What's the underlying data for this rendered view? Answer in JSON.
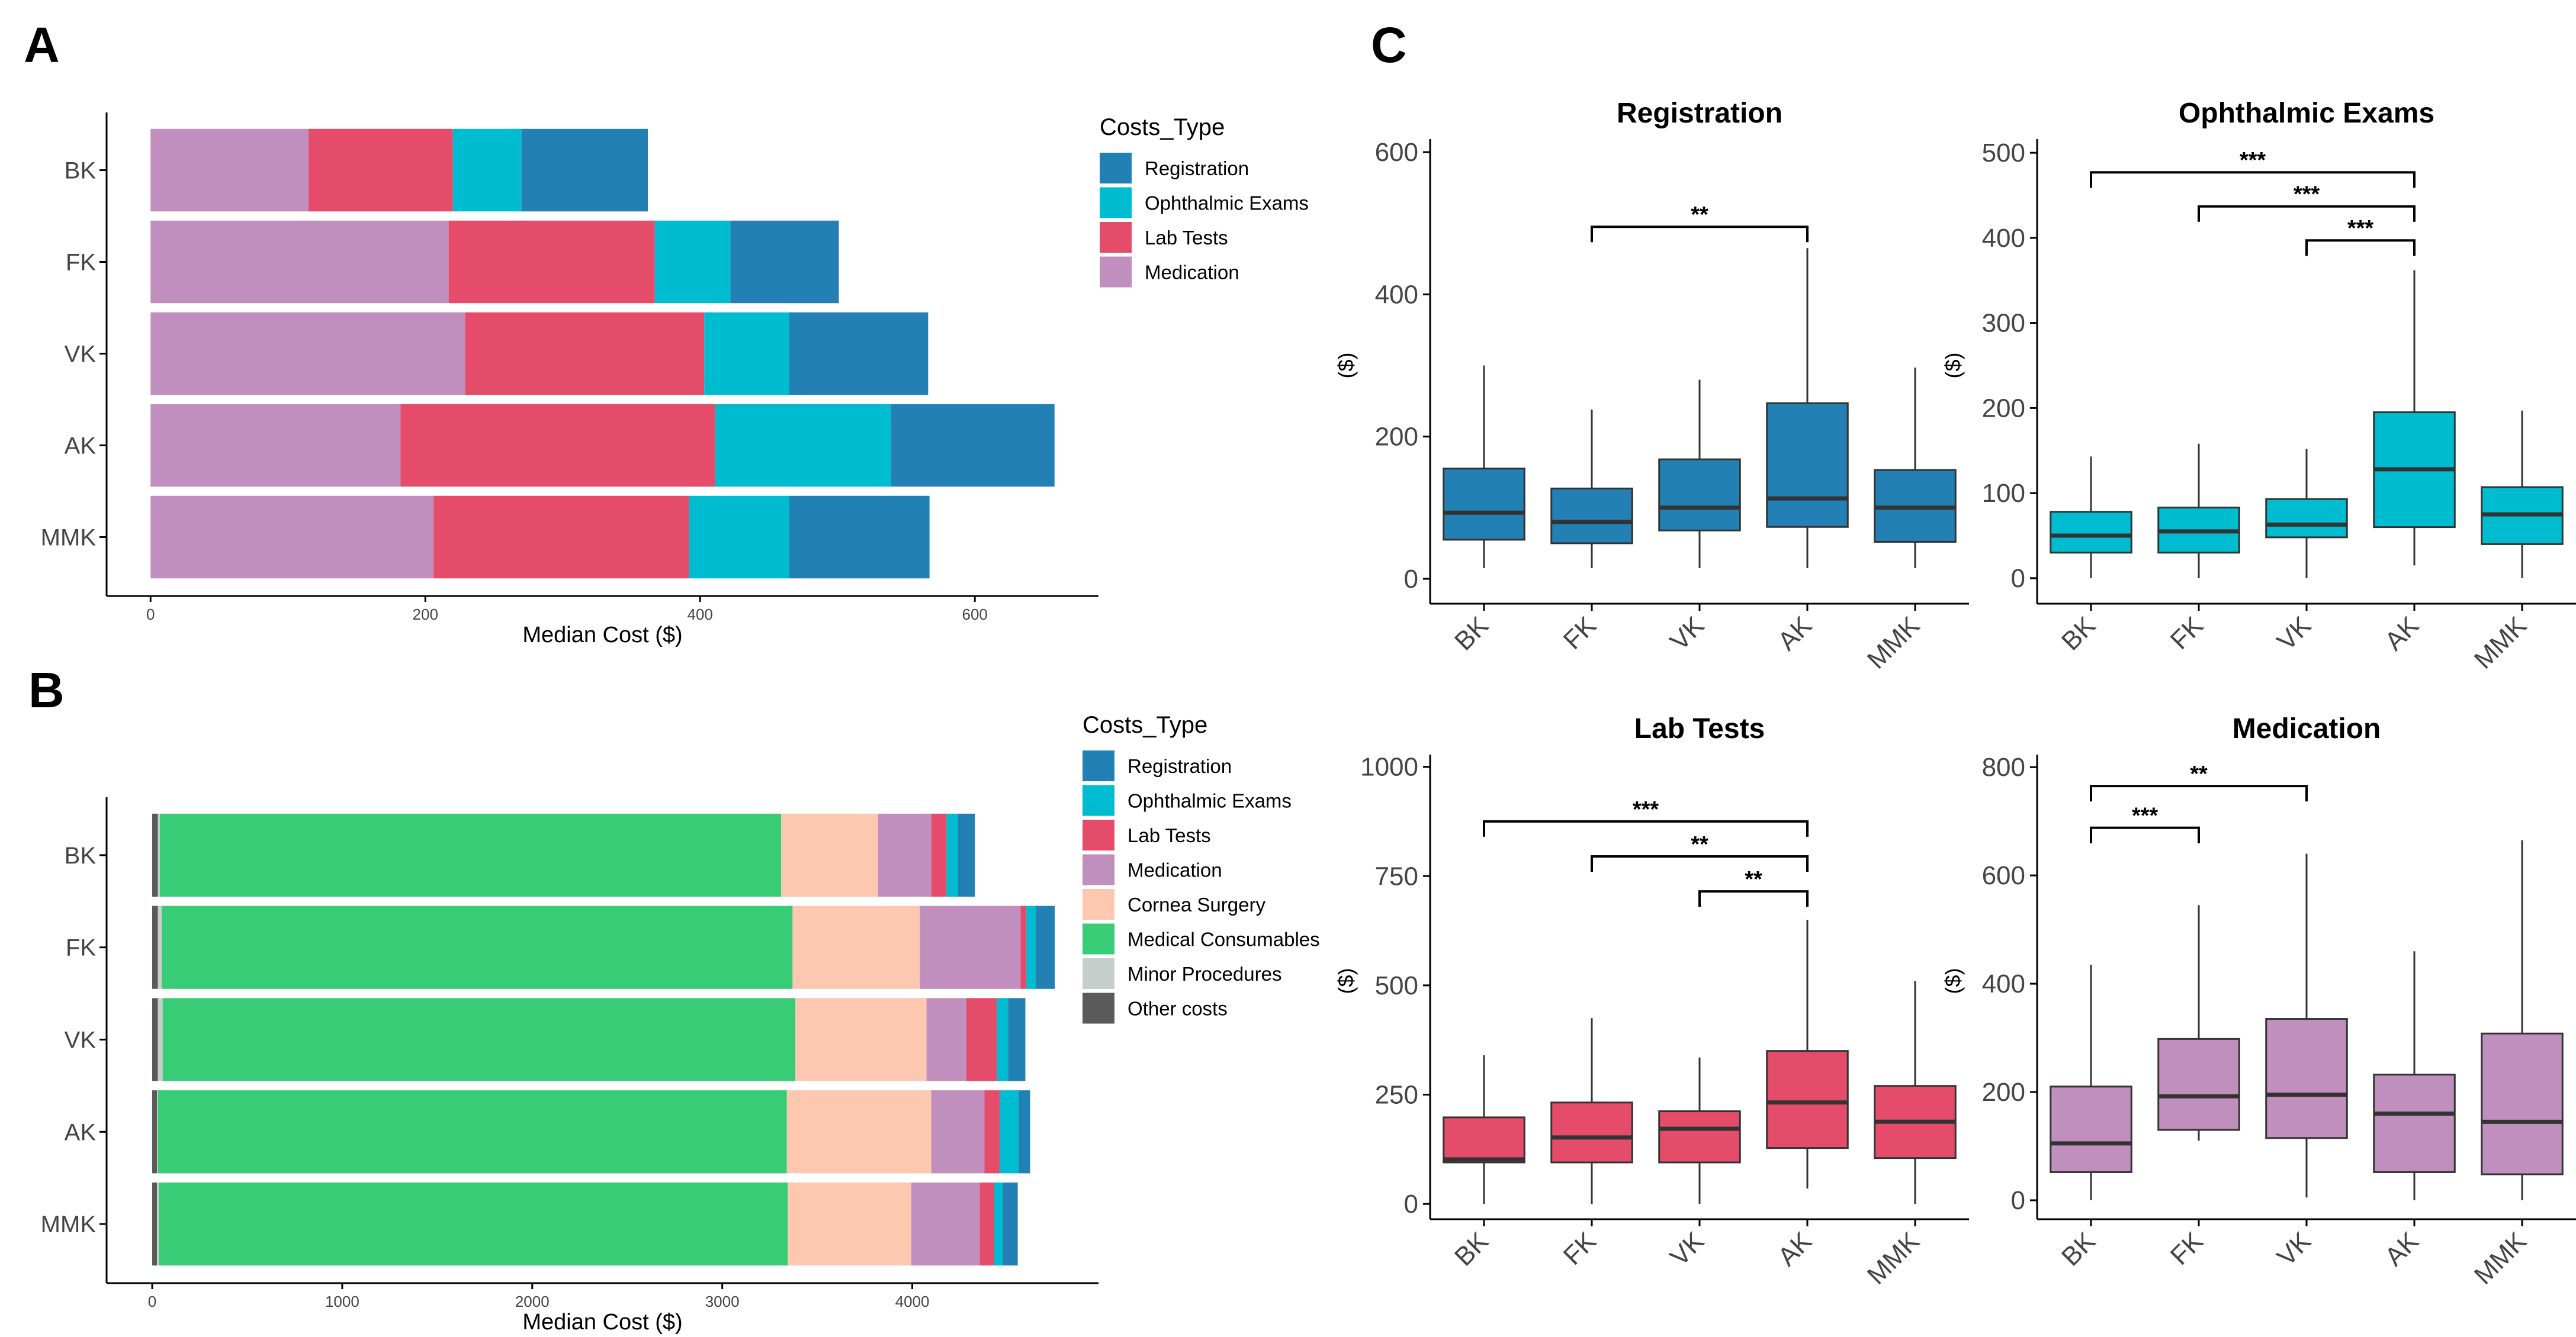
{
  "panels": {
    "a": {
      "letter": "A"
    },
    "b": {
      "letter": "B"
    },
    "c": {
      "letter": "C"
    }
  },
  "colors": {
    "Registration": "#2380b4",
    "Ophthalmic Exams": "#00bcd0",
    "Lab Tests": "#e54c6a",
    "Medication": "#c08fbe",
    "Cornea Surgery": "#fdc7b0",
    "Medical Consumables": "#38cc77",
    "Minor Procedures": "#c7cfcc",
    "Other costs": "#5a5a5a"
  },
  "chart_data": [
    {
      "id": "A",
      "type": "bar",
      "orientation": "horizontal",
      "stacked": true,
      "categories": [
        "BK",
        "FK",
        "VK",
        "AK",
        "MMK"
      ],
      "series": [
        {
          "name": "Medication",
          "values": [
            115,
            217,
            229,
            182,
            206
          ]
        },
        {
          "name": "Lab Tests",
          "values": [
            105,
            150,
            174,
            229,
            186
          ]
        },
        {
          "name": "Ophthalmic Exams",
          "values": [
            50,
            55,
            62,
            128,
            73
          ]
        },
        {
          "name": "Registration",
          "values": [
            92,
            79,
            101,
            119,
            102
          ]
        }
      ],
      "xlabel": "Median Cost ($)",
      "ylabel": "",
      "xlim": [
        -32,
        690
      ],
      "xticks": [
        0,
        200,
        400,
        600
      ],
      "legend": {
        "title": "Costs_Type",
        "position": "right",
        "items": [
          "Registration",
          "Ophthalmic Exams",
          "Lab Tests",
          "Medication"
        ]
      }
    },
    {
      "id": "B",
      "type": "bar",
      "orientation": "horizontal",
      "stacked": true,
      "categories": [
        "BK",
        "FK",
        "VK",
        "AK",
        "MMK"
      ],
      "series": [
        {
          "name": "Other costs",
          "values": [
            30,
            30,
            30,
            25,
            25
          ]
        },
        {
          "name": "Minor Procedures",
          "values": [
            10,
            20,
            25,
            5,
            10
          ]
        },
        {
          "name": "Medical Consumables",
          "values": [
            3270,
            3320,
            3330,
            3310,
            3310
          ]
        },
        {
          "name": "Cornea Surgery",
          "values": [
            510,
            670,
            690,
            760,
            650
          ]
        },
        {
          "name": "Medication",
          "values": [
            280,
            530,
            210,
            280,
            360
          ]
        },
        {
          "name": "Lab Tests",
          "values": [
            80,
            30,
            160,
            80,
            75
          ]
        },
        {
          "name": "Ophthalmic Exams",
          "values": [
            60,
            50,
            60,
            100,
            45
          ]
        },
        {
          "name": "Registration",
          "values": [
            90,
            100,
            90,
            60,
            80
          ]
        }
      ],
      "xlabel": "Median Cost ($)",
      "ylabel": "",
      "xlim": [
        -240,
        4980
      ],
      "xticks": [
        0,
        1000,
        2000,
        3000,
        4000
      ],
      "legend": {
        "title": "Costs_Type",
        "position": "right",
        "items": [
          "Registration",
          "Ophthalmic Exams",
          "Lab Tests",
          "Medication",
          "Cornea Surgery",
          "Medical Consumables",
          "Minor Procedures",
          "Other costs"
        ]
      }
    },
    {
      "id": "C1",
      "type": "box",
      "title": "Registration",
      "color_key": "Registration",
      "categories": [
        "BK",
        "FK",
        "VK",
        "AK",
        "MMK"
      ],
      "ylabel": "($)",
      "ylim": [
        -35,
        635
      ],
      "yticks": [
        0,
        200,
        400,
        600
      ],
      "boxes": [
        {
          "min": 15,
          "q1": 55,
          "median": 93,
          "q3": 155,
          "max": 300
        },
        {
          "min": 15,
          "q1": 50,
          "median": 80,
          "q3": 127,
          "max": 238
        },
        {
          "min": 15,
          "q1": 68,
          "median": 100,
          "q3": 168,
          "max": 280
        },
        {
          "min": 15,
          "q1": 73,
          "median": 113,
          "q3": 247,
          "max": 465
        },
        {
          "min": 15,
          "q1": 52,
          "median": 100,
          "q3": 153,
          "max": 297
        }
      ],
      "significance": [
        {
          "from": "FK",
          "to": "AK",
          "label": "**",
          "y": 495
        }
      ]
    },
    {
      "id": "C2",
      "type": "box",
      "title": "Ophthalmic Exams",
      "color_key": "Ophthalmic Exams",
      "categories": [
        "BK",
        "FK",
        "VK",
        "AK",
        "MMK"
      ],
      "ylabel": "($)",
      "ylim": [
        -30,
        530
      ],
      "yticks": [
        0,
        100,
        200,
        300,
        400,
        500
      ],
      "boxes": [
        {
          "min": 0,
          "q1": 30,
          "median": 50,
          "q3": 78,
          "max": 143
        },
        {
          "min": 0,
          "q1": 30,
          "median": 55,
          "q3": 83,
          "max": 158
        },
        {
          "min": 0,
          "q1": 48,
          "median": 63,
          "q3": 93,
          "max": 152
        },
        {
          "min": 15,
          "q1": 60,
          "median": 128,
          "q3": 195,
          "max": 362
        },
        {
          "min": 0,
          "q1": 40,
          "median": 75,
          "q3": 107,
          "max": 197
        }
      ],
      "significance": [
        {
          "from": "BK",
          "to": "AK",
          "label": "***",
          "y": 477
        },
        {
          "from": "FK",
          "to": "AK",
          "label": "***",
          "y": 437
        },
        {
          "from": "VK",
          "to": "AK",
          "label": "***",
          "y": 397
        }
      ]
    },
    {
      "id": "C3",
      "type": "box",
      "title": "Lab Tests",
      "color_key": "Lab Tests",
      "categories": [
        "BK",
        "FK",
        "VK",
        "AK",
        "MMK"
      ],
      "ylabel": "($)",
      "ylim": [
        -35,
        1055
      ],
      "yticks": [
        0,
        250,
        500,
        750,
        1000
      ],
      "boxes": [
        {
          "min": 0,
          "q1": 95,
          "median": 102,
          "q3": 198,
          "max": 340
        },
        {
          "min": 0,
          "q1": 95,
          "median": 152,
          "q3": 232,
          "max": 425
        },
        {
          "min": 0,
          "q1": 95,
          "median": 172,
          "q3": 212,
          "max": 335
        },
        {
          "min": 35,
          "q1": 128,
          "median": 232,
          "q3": 350,
          "max": 650
        },
        {
          "min": 0,
          "q1": 105,
          "median": 188,
          "q3": 270,
          "max": 510
        }
      ],
      "significance": [
        {
          "from": "BK",
          "to": "AK",
          "label": "***",
          "y": 875
        },
        {
          "from": "FK",
          "to": "AK",
          "label": "**",
          "y": 795
        },
        {
          "from": "VK",
          "to": "AK",
          "label": "**",
          "y": 715
        }
      ]
    },
    {
      "id": "C4",
      "type": "box",
      "title": "Medication",
      "color_key": "Medication",
      "categories": [
        "BK",
        "FK",
        "VK",
        "AK",
        "MMK"
      ],
      "ylabel": "($)",
      "ylim": [
        -35,
        845
      ],
      "yticks": [
        0,
        200,
        400,
        600,
        800
      ],
      "boxes": [
        {
          "min": 0,
          "q1": 52,
          "median": 105,
          "q3": 210,
          "max": 435
        },
        {
          "min": 110,
          "q1": 130,
          "median": 192,
          "q3": 298,
          "max": 545
        },
        {
          "min": 5,
          "q1": 115,
          "median": 195,
          "q3": 335,
          "max": 640
        },
        {
          "min": 0,
          "q1": 52,
          "median": 160,
          "q3": 232,
          "max": 460
        },
        {
          "min": 0,
          "q1": 48,
          "median": 145,
          "q3": 308,
          "max": 665
        }
      ],
      "significance": [
        {
          "from": "BK",
          "to": "VK",
          "label": "**",
          "y": 765
        },
        {
          "from": "BK",
          "to": "FK",
          "label": "***",
          "y": 688
        }
      ]
    }
  ]
}
